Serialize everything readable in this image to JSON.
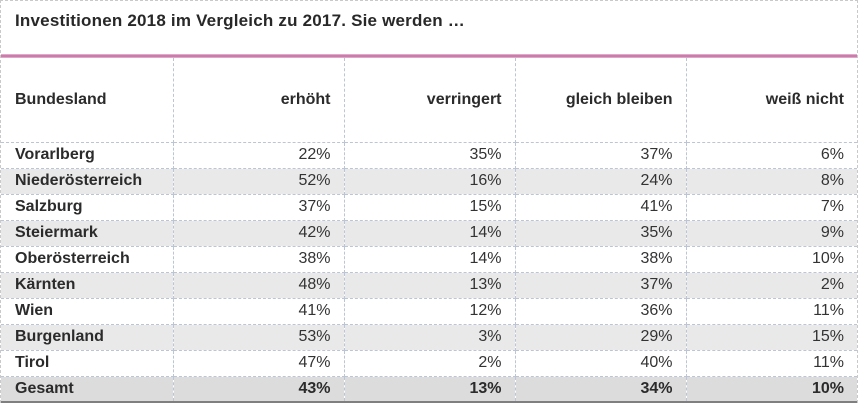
{
  "title": "Investitionen 2018 im Vergleich zu 2017. Sie werden …",
  "table": {
    "columns": [
      "Bundesland",
      "erhöht",
      "verringert",
      "gleich bleiben",
      "weiß nicht"
    ],
    "rows": [
      {
        "label": "Vorarlberg",
        "values": [
          "22%",
          "35%",
          "37%",
          "6%"
        ],
        "total": false
      },
      {
        "label": "Niederösterreich",
        "values": [
          "52%",
          "16%",
          "24%",
          "8%"
        ],
        "total": false
      },
      {
        "label": "Salzburg",
        "values": [
          "37%",
          "15%",
          "41%",
          "7%"
        ],
        "total": false
      },
      {
        "label": "Steiermark",
        "values": [
          "42%",
          "14%",
          "35%",
          "9%"
        ],
        "total": false
      },
      {
        "label": "Oberösterreich",
        "values": [
          "38%",
          "14%",
          "38%",
          "10%"
        ],
        "total": false
      },
      {
        "label": "Kärnten",
        "values": [
          "48%",
          "13%",
          "37%",
          "2%"
        ],
        "total": false
      },
      {
        "label": "Wien",
        "values": [
          "41%",
          "12%",
          "36%",
          "11%"
        ],
        "total": false
      },
      {
        "label": "Burgenland",
        "values": [
          "53%",
          "3%",
          "29%",
          "15%"
        ],
        "total": false
      },
      {
        "label": "Tirol",
        "values": [
          "47%",
          "2%",
          "40%",
          "11%"
        ],
        "total": false
      },
      {
        "label": "Gesamt",
        "values": [
          "43%",
          "13%",
          "34%",
          "10%"
        ],
        "total": true
      }
    ]
  },
  "chart_data": {
    "type": "table",
    "title": "Investitionen 2018 im Vergleich zu 2017. Sie werden …",
    "columns": [
      "Bundesland",
      "erhöht",
      "verringert",
      "gleich bleiben",
      "weiß nicht"
    ],
    "unit": "%",
    "rows": [
      [
        "Vorarlberg",
        22,
        35,
        37,
        6
      ],
      [
        "Niederösterreich",
        52,
        16,
        24,
        8
      ],
      [
        "Salzburg",
        37,
        15,
        41,
        7
      ],
      [
        "Steiermark",
        42,
        14,
        35,
        9
      ],
      [
        "Oberösterreich",
        38,
        14,
        38,
        10
      ],
      [
        "Kärnten",
        48,
        13,
        37,
        2
      ],
      [
        "Wien",
        41,
        12,
        36,
        11
      ],
      [
        "Burgenland",
        53,
        3,
        29,
        15
      ],
      [
        "Tirol",
        47,
        2,
        40,
        11
      ],
      [
        "Gesamt",
        43,
        13,
        34,
        10
      ]
    ]
  },
  "colors": {
    "accent_line": "#cb7cab",
    "row_alt_background": "#e9e9e9",
    "total_row_background": "#dcdcdc",
    "cell_border": "#bcc5d6",
    "outer_border": "#c9c9c9",
    "bottom_border": "#7f7f7f",
    "text": "#2b2b2b"
  }
}
